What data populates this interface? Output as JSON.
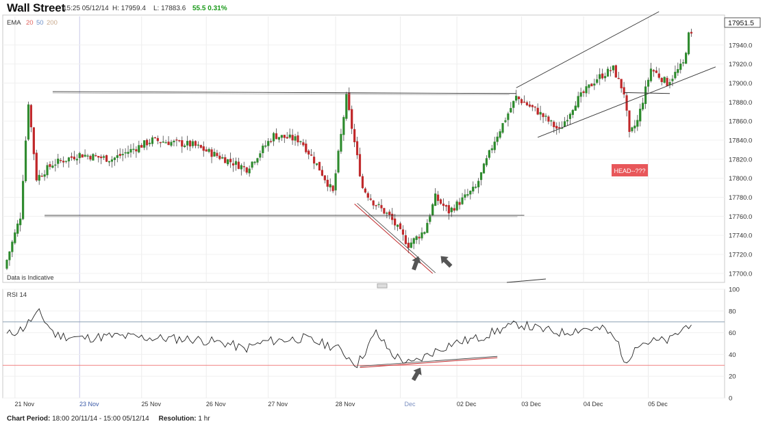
{
  "header": {
    "title": "Wall Street",
    "time": "15:25 05/12/14",
    "high": "H: 17959.4",
    "low": "L: 17883.6",
    "change": "55.5 0.31%"
  },
  "ema": {
    "label": "EMA",
    "periods": [
      "20",
      "50",
      "200"
    ],
    "colors": [
      "#e0635d",
      "#6b8fc7",
      "#c9a98c"
    ]
  },
  "price_panel": {
    "current_price": "17951.5",
    "note": "Data is Indicative",
    "annotation": "HEAD--???"
  },
  "rsi_panel": {
    "label": "RSI 14"
  },
  "footer": {
    "period_label": "Chart Period:",
    "period_value": "18:00 20/11/14 - 15:00 05/12/14",
    "resolution_label": "Resolution:",
    "resolution_value": "1 hr"
  },
  "colors": {
    "up": "#2d8a2d",
    "down": "#c0282a",
    "rsi_upper": "#8aa0b4",
    "rsi_lower": "#f08080",
    "highlight": "#f0d0d0"
  },
  "chart_data": [
    {
      "type": "candlestick",
      "x_labels": [
        "21 Nov",
        "23 Nov",
        "25 Nov",
        "26 Nov",
        "27 Nov",
        "28 Nov",
        "Dec",
        "02 Dec",
        "03 Dec",
        "04 Dec",
        "05 Dec"
      ],
      "y_ticks": [
        17700,
        17720,
        17740,
        17760,
        17780,
        17800,
        17820,
        17840,
        17860,
        17880,
        17900,
        17920,
        17940
      ],
      "y_tick_labels": [
        "17700.0",
        "17720.0",
        "17740.0",
        "17760.0",
        "17780.0",
        "17800.0",
        "17820.0",
        "17840.0",
        "17860.0",
        "17880.0",
        "17900.0",
        "17920.0",
        "17940.0"
      ],
      "ylim": [
        17692,
        17970
      ],
      "x_keypoints": [
        [
          0,
          17705
        ],
        [
          6,
          17760
        ],
        [
          9,
          17880
        ],
        [
          12,
          17800
        ],
        [
          18,
          17815
        ],
        [
          28,
          17825
        ],
        [
          40,
          17820
        ],
        [
          55,
          17840
        ],
        [
          70,
          17835
        ],
        [
          82,
          17820
        ],
        [
          90,
          17810
        ],
        [
          100,
          17845
        ],
        [
          110,
          17840
        ],
        [
          117,
          17810
        ],
        [
          122,
          17785
        ],
        [
          127,
          17885
        ],
        [
          133,
          17790
        ],
        [
          137,
          17775
        ],
        [
          143,
          17760
        ],
        [
          150,
          17730
        ],
        [
          156,
          17745
        ],
        [
          160,
          17780
        ],
        [
          165,
          17765
        ],
        [
          175,
          17790
        ],
        [
          182,
          17840
        ],
        [
          190,
          17885
        ],
        [
          198,
          17870
        ],
        [
          206,
          17850
        ],
        [
          212,
          17880
        ],
        [
          220,
          17905
        ],
        [
          226,
          17915
        ],
        [
          230,
          17890
        ],
        [
          232,
          17845
        ],
        [
          235,
          17860
        ],
        [
          240,
          17915
        ],
        [
          246,
          17900
        ],
        [
          252,
          17920
        ],
        [
          254,
          17950
        ]
      ],
      "trend_lines": [
        {
          "from": [
            17,
            17891
          ],
          "to": [
            189,
            17889
          ]
        },
        {
          "from": [
            14,
            17761
          ],
          "to": [
            192,
            17761
          ]
        },
        {
          "from": [
            189,
            17895
          ],
          "to": [
            242,
            17975
          ]
        },
        {
          "from": [
            197,
            17843
          ],
          "to": [
            263,
            17917
          ]
        },
        {
          "from": [
            229,
            17890
          ],
          "to": [
            246,
            17889
          ]
        },
        {
          "from": [
            129,
            17773
          ],
          "to": [
            158,
            17700
          ]
        }
      ]
    },
    {
      "type": "line",
      "name": "RSI 14",
      "y_ticks": [
        0,
        20,
        40,
        60,
        80,
        100
      ],
      "y_tick_labels": [
        "0",
        "20",
        "40",
        "60",
        "80",
        "100"
      ],
      "ylim": [
        0,
        100
      ],
      "levels": [
        30,
        70
      ],
      "x_keypoints": [
        [
          0,
          58
        ],
        [
          6,
          64
        ],
        [
          9,
          72
        ],
        [
          12,
          78
        ],
        [
          18,
          58
        ],
        [
          28,
          55
        ],
        [
          40,
          57
        ],
        [
          55,
          55
        ],
        [
          70,
          54
        ],
        [
          82,
          50
        ],
        [
          88,
          45
        ],
        [
          96,
          52
        ],
        [
          110,
          55
        ],
        [
          117,
          50
        ],
        [
          122,
          47
        ],
        [
          130,
          31
        ],
        [
          137,
          60
        ],
        [
          143,
          40
        ],
        [
          150,
          31
        ],
        [
          158,
          42
        ],
        [
          165,
          50
        ],
        [
          175,
          55
        ],
        [
          182,
          62
        ],
        [
          190,
          68
        ],
        [
          198,
          63
        ],
        [
          206,
          60
        ],
        [
          214,
          64
        ],
        [
          222,
          63
        ],
        [
          227,
          50
        ],
        [
          230,
          28
        ],
        [
          233,
          50
        ],
        [
          240,
          52
        ],
        [
          246,
          53
        ],
        [
          252,
          66
        ],
        [
          254,
          70
        ]
      ],
      "trend_lines": [
        {
          "from": [
            131,
            28
          ],
          "to": [
            182,
            37
          ]
        }
      ]
    }
  ]
}
